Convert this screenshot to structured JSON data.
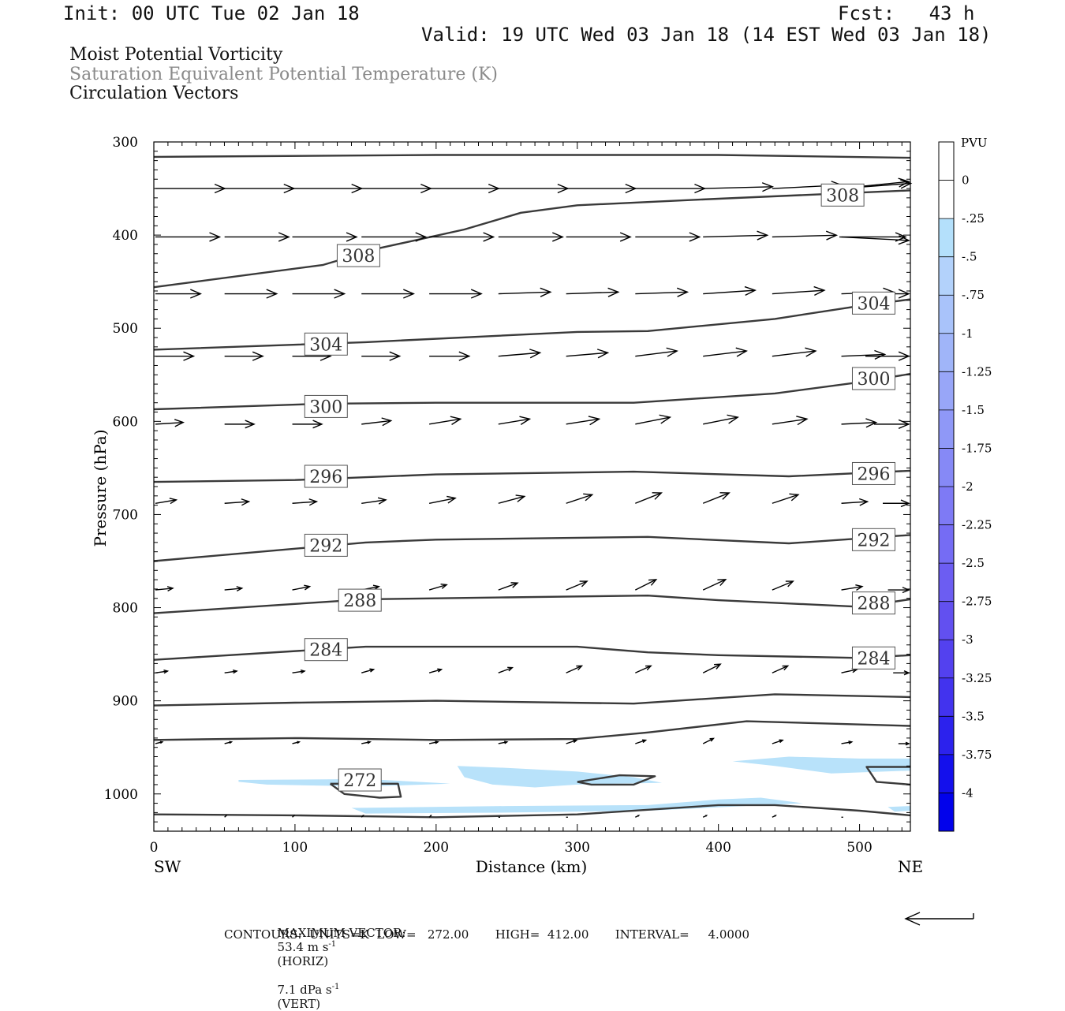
{
  "header": {
    "init": "Init: 00 UTC Tue 02 Jan 18",
    "fcst": "Fcst:   43 h",
    "valid": "Valid: 19 UTC Wed 03 Jan 18 (14 EST Wed 03 Jan 18)"
  },
  "titles": {
    "line1": "Moist Potential Vorticity",
    "line2": "Saturation Equivalent Potential Temperature (K)",
    "line3": "Circulation Vectors"
  },
  "footer": {
    "max_label": "MAXIMUM VECTOR:",
    "max_horiz": "53.4 m s",
    "horiz_tag": "(HORIZ)",
    "max_vert": "7.1 dPa s",
    "vert_tag": "(VERT)",
    "exp": "-1",
    "contours": "CONTOURS:  UNITS=K  LOW=   272.00       HIGH=  412.00       INTERVAL=     4.0000"
  },
  "colors": {
    "contour": "#3a3a3a",
    "pv_fill": "#b8e2fa",
    "arrow": "#000000"
  },
  "chart_data": {
    "type": "line",
    "xlabel": "Distance (km)",
    "ylabel": "Pressure (hPa)",
    "xlim": [
      0,
      536
    ],
    "ylim": [
      1040,
      300
    ],
    "x_ticks": [
      "0",
      "100",
      "200",
      "300",
      "400",
      "500"
    ],
    "y_ticks": [
      "300",
      "400",
      "500",
      "600",
      "700",
      "800",
      "900",
      "1000"
    ],
    "x_ends": {
      "left": "SW",
      "right": "NE"
    },
    "grid": false,
    "series": [
      {
        "label": "",
        "points": [
          [
            0,
            316
          ],
          [
            200,
            314
          ],
          [
            400,
            314
          ],
          [
            536,
            317
          ]
        ]
      },
      {
        "label": "308",
        "points": [
          [
            0,
            456
          ],
          [
            120,
            432
          ],
          [
            160,
            414
          ],
          [
            220,
            394
          ],
          [
            260,
            376
          ],
          [
            300,
            368
          ],
          [
            400,
            361
          ],
          [
            536,
            352
          ]
        ]
      },
      {
        "label": "304",
        "points": [
          [
            0,
            523
          ],
          [
            150,
            515
          ],
          [
            300,
            504
          ],
          [
            350,
            503
          ],
          [
            440,
            490
          ],
          [
            500,
            476
          ],
          [
            536,
            469
          ]
        ]
      },
      {
        "label": "300",
        "points": [
          [
            0,
            587
          ],
          [
            120,
            581
          ],
          [
            200,
            580
          ],
          [
            340,
            580
          ],
          [
            440,
            570
          ],
          [
            500,
            558
          ],
          [
            536,
            549
          ]
        ]
      },
      {
        "label": "296",
        "points": [
          [
            0,
            665
          ],
          [
            100,
            663
          ],
          [
            200,
            657
          ],
          [
            340,
            654
          ],
          [
            450,
            659
          ],
          [
            536,
            653
          ]
        ]
      },
      {
        "label": "292",
        "points": [
          [
            0,
            750
          ],
          [
            150,
            730
          ],
          [
            200,
            727
          ],
          [
            350,
            724
          ],
          [
            450,
            731
          ],
          [
            536,
            722
          ]
        ]
      },
      {
        "label": "288",
        "points": [
          [
            0,
            806
          ],
          [
            100,
            796
          ],
          [
            150,
            791
          ],
          [
            250,
            789
          ],
          [
            350,
            787
          ],
          [
            400,
            792
          ],
          [
            500,
            799
          ],
          [
            536,
            791
          ]
        ]
      },
      {
        "label": "284",
        "points": [
          [
            0,
            856
          ],
          [
            150,
            842
          ],
          [
            300,
            842
          ],
          [
            350,
            848
          ],
          [
            400,
            851
          ],
          [
            500,
            854
          ],
          [
            536,
            851
          ]
        ]
      },
      {
        "label": "",
        "points": [
          [
            0,
            905
          ],
          [
            100,
            902
          ],
          [
            200,
            900
          ],
          [
            340,
            903
          ],
          [
            440,
            893
          ],
          [
            536,
            896
          ]
        ]
      },
      {
        "label": "",
        "points": [
          [
            0,
            942
          ],
          [
            100,
            940
          ],
          [
            200,
            942
          ],
          [
            300,
            941
          ],
          [
            350,
            934
          ],
          [
            420,
            922
          ],
          [
            536,
            927
          ]
        ]
      },
      {
        "label": "272",
        "points": [
          [
            125,
            989
          ],
          [
            135,
            1000
          ],
          [
            160,
            1004
          ],
          [
            175,
            1003
          ],
          [
            173,
            989
          ],
          [
            125,
            989
          ]
        ]
      },
      {
        "label": "",
        "points": [
          [
            300,
            987
          ],
          [
            310,
            990
          ],
          [
            340,
            990
          ],
          [
            355,
            981
          ],
          [
            330,
            980
          ],
          [
            300,
            987
          ]
        ]
      },
      {
        "label": "",
        "points": [
          [
            536,
            971
          ],
          [
            505,
            971
          ],
          [
            512,
            987
          ],
          [
            536,
            990
          ]
        ]
      },
      {
        "label": "",
        "points": [
          [
            0,
            1022
          ],
          [
            100,
            1023
          ],
          [
            200,
            1025
          ],
          [
            300,
            1022
          ],
          [
            400,
            1012
          ],
          [
            440,
            1012
          ],
          [
            500,
            1018
          ],
          [
            536,
            1023
          ]
        ]
      }
    ],
    "pv_regions": [
      {
        "level": "-0.25 to -0.5",
        "points": [
          [
            60,
            985
          ],
          [
            150,
            984
          ],
          [
            200,
            988
          ],
          [
            210,
            989
          ],
          [
            150,
            992
          ],
          [
            80,
            990
          ],
          [
            60,
            987
          ]
        ]
      },
      {
        "level": "-0.25 to -0.5",
        "points": [
          [
            215,
            970
          ],
          [
            250,
            972
          ],
          [
            300,
            976
          ],
          [
            340,
            982
          ],
          [
            360,
            988
          ],
          [
            300,
            990
          ],
          [
            270,
            993
          ],
          [
            240,
            990
          ],
          [
            220,
            982
          ]
        ]
      },
      {
        "level": "-0.25 to -0.5",
        "points": [
          [
            410,
            965
          ],
          [
            450,
            960
          ],
          [
            500,
            962
          ],
          [
            536,
            962
          ],
          [
            536,
            975
          ],
          [
            480,
            978
          ],
          [
            440,
            970
          ]
        ]
      },
      {
        "level": "-0.25 to -0.5",
        "points": [
          [
            140,
            1015
          ],
          [
            250,
            1013
          ],
          [
            350,
            1012
          ],
          [
            400,
            1006
          ],
          [
            430,
            1004
          ],
          [
            460,
            1010
          ],
          [
            350,
            1018
          ],
          [
            250,
            1020
          ],
          [
            150,
            1021
          ]
        ]
      },
      {
        "level": "-0.25 to -0.5",
        "points": [
          [
            520,
            1014
          ],
          [
            536,
            1013
          ],
          [
            536,
            1018
          ],
          [
            525,
            1019
          ]
        ]
      }
    ],
    "vectors": {
      "columns_km": [
        0,
        49,
        97,
        146,
        194,
        243,
        291,
        340,
        388,
        437,
        486,
        536
      ],
      "rows": [
        {
          "p": 350,
          "u": [
            40,
            40,
            40,
            40,
            40,
            40,
            40,
            40,
            40,
            40,
            40,
            40
          ],
          "w": [
            0,
            0,
            0,
            0,
            0,
            0,
            0,
            0,
            -1,
            -2,
            -3,
            -4
          ]
        },
        {
          "p": 402,
          "u": [
            37,
            37,
            37,
            37,
            37,
            37,
            37,
            37,
            37,
            37,
            37,
            40
          ],
          "w": [
            0,
            0,
            0,
            0,
            0,
            0,
            0,
            0,
            -1,
            -1,
            0,
            2
          ]
        },
        {
          "p": 463,
          "u": [
            26,
            30,
            30,
            30,
            30,
            30,
            30,
            30,
            30,
            30,
            30,
            30
          ],
          "w": [
            0,
            0,
            0,
            0,
            0,
            -1,
            -1,
            -1,
            -2,
            -2,
            -1,
            0
          ]
        },
        {
          "p": 530,
          "u": [
            22,
            22,
            22,
            22,
            23,
            24,
            24,
            24,
            25,
            25,
            25,
            25
          ],
          "w": [
            0,
            0,
            0,
            0,
            0,
            -2,
            -2,
            -3,
            -3,
            -3,
            -1,
            0
          ]
        },
        {
          "p": 603,
          "u": [
            16,
            17,
            17,
            17,
            18,
            18,
            19,
            20,
            20,
            20,
            20,
            20
          ],
          "w": [
            -1,
            0,
            0,
            -2,
            -3,
            -3,
            -3,
            -4,
            -4,
            -3,
            -1,
            0
          ]
        },
        {
          "p": 688,
          "u": [
            12,
            14,
            14,
            14,
            15,
            15,
            15,
            15,
            15,
            15,
            15,
            15
          ],
          "w": [
            -2,
            -1,
            -1,
            -2,
            -3,
            -4,
            -5,
            -6,
            -6,
            -5,
            -1,
            0
          ]
        },
        {
          "p": 781,
          "u": [
            10,
            10,
            10,
            10,
            10,
            11,
            12,
            12,
            13,
            12,
            12,
            12
          ],
          "w": [
            -1,
            -1,
            -2,
            -2,
            -3,
            -4,
            -5,
            -6,
            -6,
            -5,
            -2,
            0
          ]
        },
        {
          "p": 870,
          "u": [
            7,
            7,
            7,
            7,
            7,
            8,
            9,
            9,
            10,
            9,
            9,
            9
          ],
          "w": [
            -1,
            -1,
            -1,
            -2,
            -2,
            -3,
            -4,
            -4,
            -5,
            -4,
            -2,
            0
          ]
        },
        {
          "p": 946,
          "u": [
            4,
            4,
            4,
            5,
            5,
            5,
            6,
            6,
            6,
            6,
            6,
            6
          ],
          "w": [
            -1,
            -1,
            -1,
            -1,
            -1,
            -1,
            -2,
            -2,
            -3,
            -2,
            -1,
            0
          ]
        },
        {
          "p": 1025,
          "u": [
            0,
            1,
            1,
            1,
            1,
            1,
            1,
            2,
            2,
            2,
            1,
            0
          ],
          "w": [
            0,
            -1,
            -1,
            -1,
            -1,
            0,
            0,
            -1,
            -1,
            -1,
            0,
            0
          ]
        }
      ]
    }
  },
  "colorbar": {
    "title": "PVU",
    "labels": [
      "0",
      "-.25",
      "-.5",
      "-.75",
      "-1",
      "-1.25",
      "-1.5",
      "-1.75",
      "-2",
      "-2.25",
      "-2.5",
      "-2.75",
      "-3",
      "-3.25",
      "-3.5",
      "-3.75",
      "-4"
    ],
    "colors": [
      "#ffffff",
      "#ffffff",
      "#b4e0fb",
      "#b3d2fb",
      "#a9c3fa",
      "#a0b5f9",
      "#98a6f8",
      "#8f98f7",
      "#8689f6",
      "#7e7af5",
      "#756cf4",
      "#6c5df2",
      "#6250f0",
      "#5341ef",
      "#4233ee",
      "#2c22ed",
      "#1410ec",
      "#0202eb"
    ]
  }
}
